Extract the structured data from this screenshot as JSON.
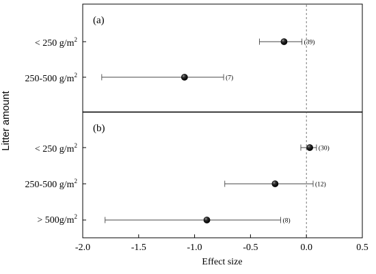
{
  "chart_data": {
    "type": "scatter",
    "xlabel": "Effect size",
    "ylabel": "Litter amount",
    "xlim": [
      -2.0,
      0.5
    ],
    "x_ticks": [
      "-2.0",
      "-1.5",
      "-1.0",
      "-0.5",
      "0.0",
      "0.5"
    ],
    "x_tick_values": [
      -2.0,
      -1.5,
      -1.0,
      -0.5,
      0.0,
      0.5
    ],
    "reference_line_x": 0.0,
    "grid": false,
    "panels": [
      {
        "label": "(a)",
        "rows": [
          {
            "category": "< 250 g/m",
            "superscript": "2",
            "mean": -0.2,
            "ci_low": -0.42,
            "ci_high": -0.04,
            "n_label": "(39)"
          },
          {
            "category": "250-500 g/m",
            "superscript": "2",
            "mean": -1.09,
            "ci_low": -1.83,
            "ci_high": -0.74,
            "n_label": "(7)"
          }
        ]
      },
      {
        "label": "(b)",
        "rows": [
          {
            "category": "< 250 g/m",
            "superscript": "2",
            "mean": 0.03,
            "ci_low": -0.05,
            "ci_high": 0.09,
            "n_label": "(30)"
          },
          {
            "category": "250-500 g/m",
            "superscript": "2",
            "mean": -0.28,
            "ci_low": -0.73,
            "ci_high": 0.06,
            "n_label": "(12)"
          },
          {
            "category": "> 500g/m",
            "superscript": "2",
            "mean": -0.89,
            "ci_low": -1.8,
            "ci_high": -0.23,
            "n_label": "(8)"
          }
        ]
      }
    ]
  }
}
